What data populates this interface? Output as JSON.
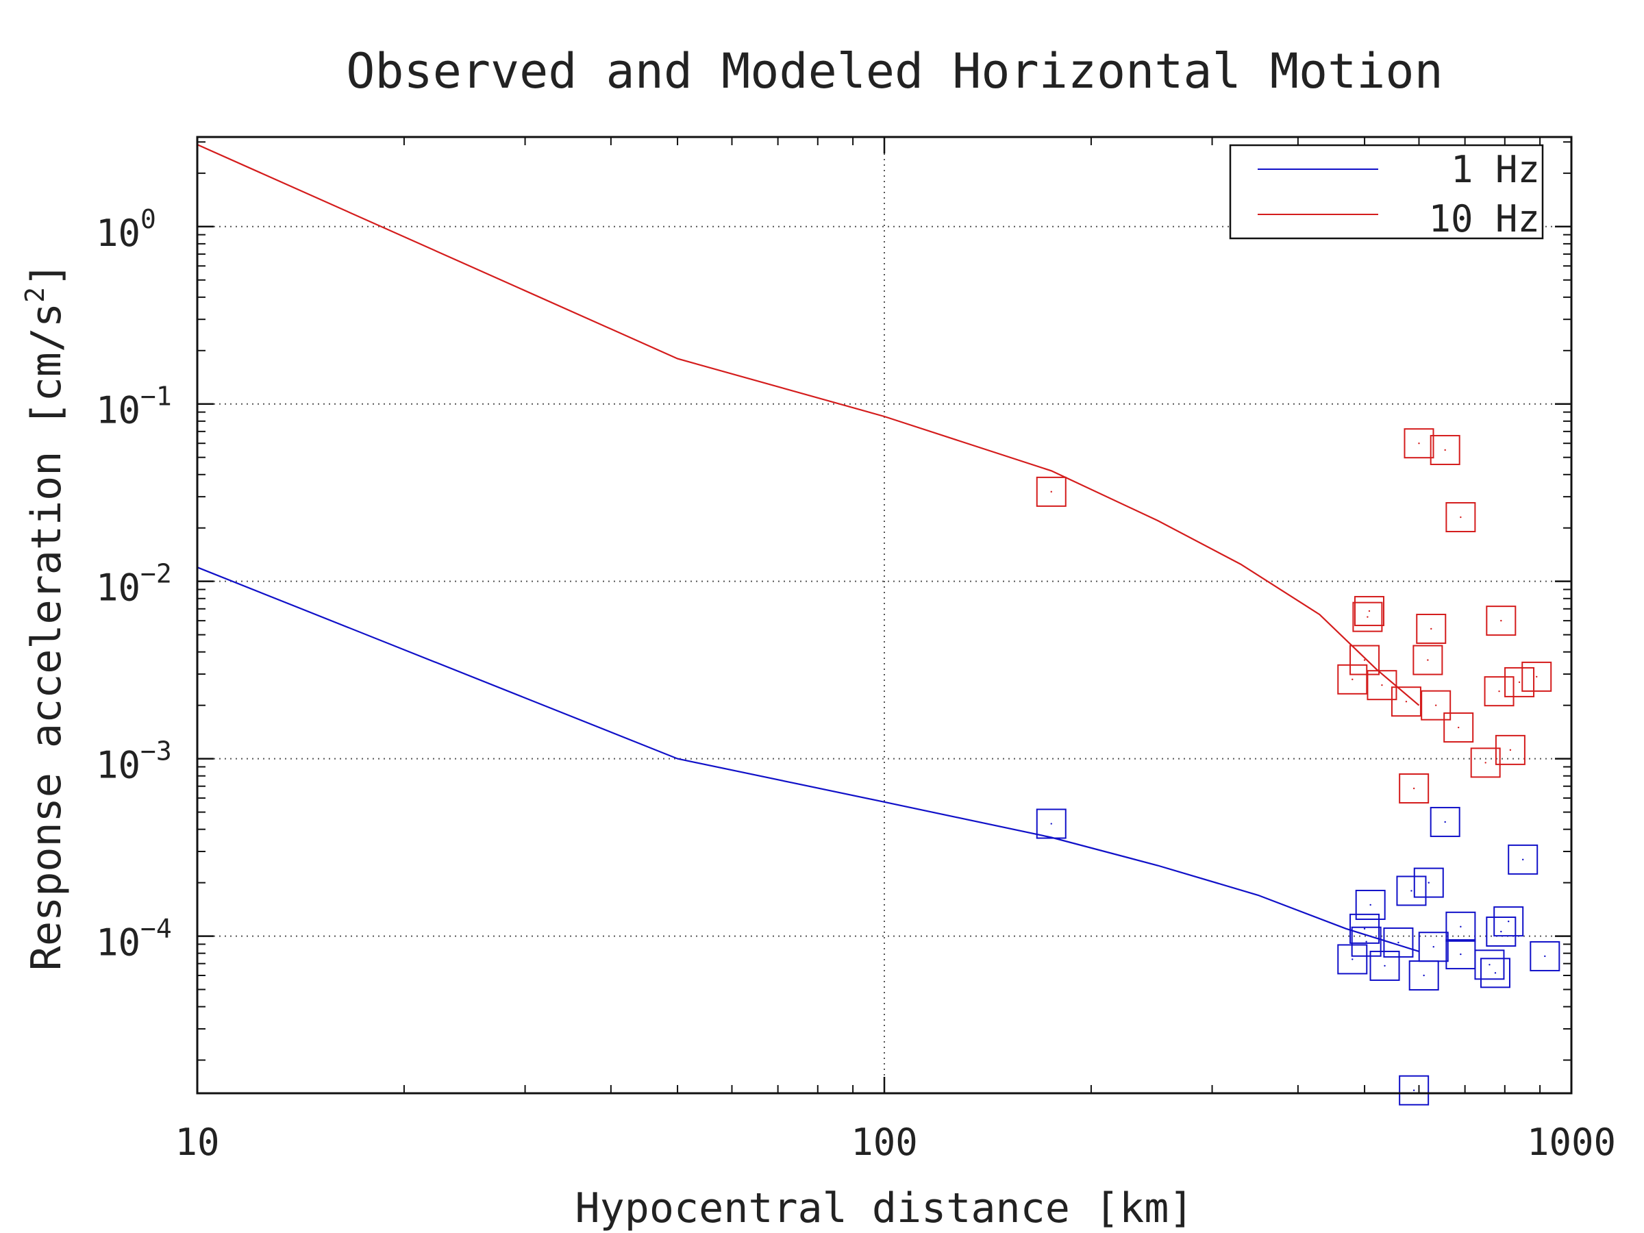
{
  "chart_data": {
    "type": "scatter",
    "title": "Observed and Modeled Horizontal Motion",
    "xlabel": "Hypocentral distance [km]",
    "ylabel": "Response acceleration [cm/s",
    "ylabel_sup": "2",
    "ylabel_close": "]",
    "xscale": "log",
    "yscale": "log",
    "xlim": [
      10,
      1000
    ],
    "ylim": [
      1.3e-05,
      3.2
    ],
    "grid": true,
    "x_ticks": [
      {
        "value": 10,
        "label": "10"
      },
      {
        "value": 100,
        "label": "100"
      },
      {
        "value": 1000,
        "label": "1000"
      }
    ],
    "y_ticks": [
      {
        "value": 1,
        "base": "10",
        "exp": "0"
      },
      {
        "value": 0.1,
        "base": "10",
        "exp": "−1"
      },
      {
        "value": 0.01,
        "base": "10",
        "exp": "−2"
      },
      {
        "value": 0.001,
        "base": "10",
        "exp": "−3"
      },
      {
        "value": 0.0001,
        "base": "10",
        "exp": "−4"
      }
    ],
    "legend": {
      "placement": "top-right",
      "entries": [
        {
          "label": "1 Hz",
          "color": "#1010c8"
        },
        {
          "label": "10 Hz",
          "color": "#d41c1c"
        }
      ]
    },
    "series": [
      {
        "name": "10 Hz",
        "color": "#d41c1c",
        "model_line": [
          {
            "x": 10,
            "y": 2.9
          },
          {
            "x": 50,
            "y": 0.18
          },
          {
            "x": 100,
            "y": 0.085
          },
          {
            "x": 175,
            "y": 0.042
          },
          {
            "x": 250,
            "y": 0.022
          },
          {
            "x": 330,
            "y": 0.0125
          },
          {
            "x": 430,
            "y": 0.0065
          },
          {
            "x": 520,
            "y": 0.0032
          },
          {
            "x": 600,
            "y": 0.002
          }
        ],
        "observed": [
          {
            "x": 175,
            "y": 0.032
          },
          {
            "x": 600,
            "y": 0.06
          },
          {
            "x": 655,
            "y": 0.055
          },
          {
            "x": 690,
            "y": 0.023
          },
          {
            "x": 508,
            "y": 0.0068
          },
          {
            "x": 505,
            "y": 0.0063
          },
          {
            "x": 625,
            "y": 0.0054
          },
          {
            "x": 790,
            "y": 0.006
          },
          {
            "x": 500,
            "y": 0.0036
          },
          {
            "x": 618,
            "y": 0.0036
          },
          {
            "x": 480,
            "y": 0.0028
          },
          {
            "x": 530,
            "y": 0.0026
          },
          {
            "x": 575,
            "y": 0.0021
          },
          {
            "x": 635,
            "y": 0.002
          },
          {
            "x": 685,
            "y": 0.0015
          },
          {
            "x": 785,
            "y": 0.0024
          },
          {
            "x": 840,
            "y": 0.0027
          },
          {
            "x": 890,
            "y": 0.0029
          },
          {
            "x": 750,
            "y": 0.00095
          },
          {
            "x": 815,
            "y": 0.00112
          },
          {
            "x": 590,
            "y": 0.00068
          }
        ]
      },
      {
        "name": "1 Hz",
        "color": "#1010c8",
        "model_line": [
          {
            "x": 10,
            "y": 0.012
          },
          {
            "x": 50,
            "y": 0.001
          },
          {
            "x": 100,
            "y": 0.00057
          },
          {
            "x": 175,
            "y": 0.00036
          },
          {
            "x": 250,
            "y": 0.00025
          },
          {
            "x": 350,
            "y": 0.00017
          },
          {
            "x": 470,
            "y": 0.00011
          },
          {
            "x": 600,
            "y": 8.2e-05
          }
        ],
        "observed": [
          {
            "x": 175,
            "y": 0.00043
          },
          {
            "x": 655,
            "y": 0.00044
          },
          {
            "x": 850,
            "y": 0.00027
          },
          {
            "x": 620,
            "y": 0.0002
          },
          {
            "x": 585,
            "y": 0.00018
          },
          {
            "x": 510,
            "y": 0.00015
          },
          {
            "x": 500,
            "y": 0.00011
          },
          {
            "x": 503,
            "y": 9.3e-05
          },
          {
            "x": 560,
            "y": 9.2e-05
          },
          {
            "x": 630,
            "y": 8.7e-05
          },
          {
            "x": 690,
            "y": 0.000113
          },
          {
            "x": 790,
            "y": 0.000106
          },
          {
            "x": 810,
            "y": 0.000121
          },
          {
            "x": 480,
            "y": 7.4e-05
          },
          {
            "x": 535,
            "y": 6.8e-05
          },
          {
            "x": 610,
            "y": 6e-05
          },
          {
            "x": 690,
            "y": 7.9e-05
          },
          {
            "x": 760,
            "y": 6.9e-05
          },
          {
            "x": 775,
            "y": 6.2e-05
          },
          {
            "x": 915,
            "y": 7.7e-05
          },
          {
            "x": 590,
            "y": 1.35e-05
          }
        ]
      }
    ]
  }
}
